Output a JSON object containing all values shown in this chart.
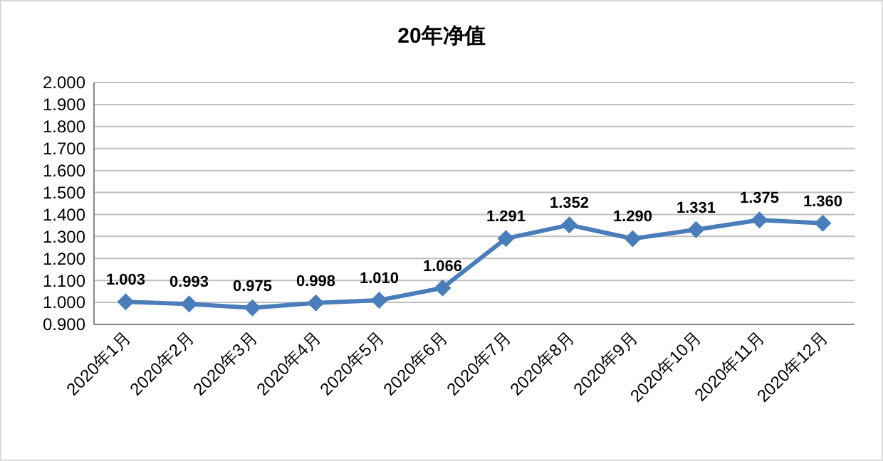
{
  "chart_data": {
    "type": "line",
    "title": "20年净值",
    "categories": [
      "2020年1月",
      "2020年2月",
      "2020年3月",
      "2020年4月",
      "2020年5月",
      "2020年6月",
      "2020年7月",
      "2020年8月",
      "2020年9月",
      "2020年10月",
      "2020年11月",
      "2020年12月"
    ],
    "series": [
      {
        "color": "#4a7ebb",
        "values": [
          1.003,
          0.993,
          0.975,
          0.998,
          1.01,
          1.066,
          1.291,
          1.352,
          1.29,
          1.331,
          1.375,
          1.36
        ],
        "value_labels": [
          "1.003",
          "0.993",
          "0.975",
          "0.998",
          "1.010",
          "1.066",
          "1.291",
          "1.352",
          "1.290",
          "1.331",
          "1.375",
          "1.360"
        ]
      }
    ],
    "ylim": [
      0.9,
      2.0
    ],
    "yticks": [
      {
        "value": 0.9,
        "label": "0.900"
      },
      {
        "value": 1.0,
        "label": "1.000"
      },
      {
        "value": 1.1,
        "label": "1.100"
      },
      {
        "value": 1.2,
        "label": "1.200"
      },
      {
        "value": 1.3,
        "label": "1.300"
      },
      {
        "value": 1.4,
        "label": "1.400"
      },
      {
        "value": 1.5,
        "label": "1.500"
      },
      {
        "value": 1.6,
        "label": "1.600"
      },
      {
        "value": 1.7,
        "label": "1.700"
      },
      {
        "value": 1.8,
        "label": "1.800"
      },
      {
        "value": 1.9,
        "label": "1.900"
      },
      {
        "value": 2.0,
        "label": "2.000"
      }
    ],
    "grid": "y",
    "marker": "diamond",
    "line_style": "solid"
  }
}
